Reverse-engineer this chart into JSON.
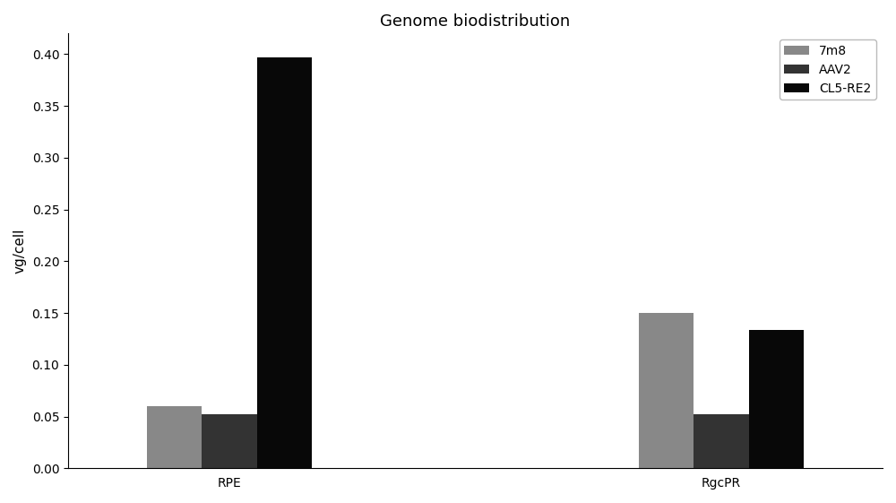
{
  "title": "Genome biodistribution",
  "ylabel": "vg/cell",
  "groups": [
    "RPE",
    "RgcPR"
  ],
  "series": [
    {
      "label": "7m8",
      "color": "#888888",
      "values": [
        0.06,
        0.15
      ]
    },
    {
      "label": "AAV2",
      "color": "#333333",
      "values": [
        0.052,
        0.052
      ]
    },
    {
      "label": "CL5-RE2",
      "color": "#080808",
      "values": [
        0.397,
        0.134
      ]
    }
  ],
  "ylim": [
    0,
    0.42
  ],
  "yticks": [
    0.0,
    0.05,
    0.1,
    0.15,
    0.2,
    0.25,
    0.3,
    0.35,
    0.4
  ],
  "bar_width": 0.28,
  "group_centers": [
    1.0,
    3.5
  ],
  "background_color": "#ffffff",
  "legend_loc": "upper right",
  "title_fontsize": 13,
  "axis_fontsize": 11,
  "tick_fontsize": 10,
  "legend_fontsize": 10
}
